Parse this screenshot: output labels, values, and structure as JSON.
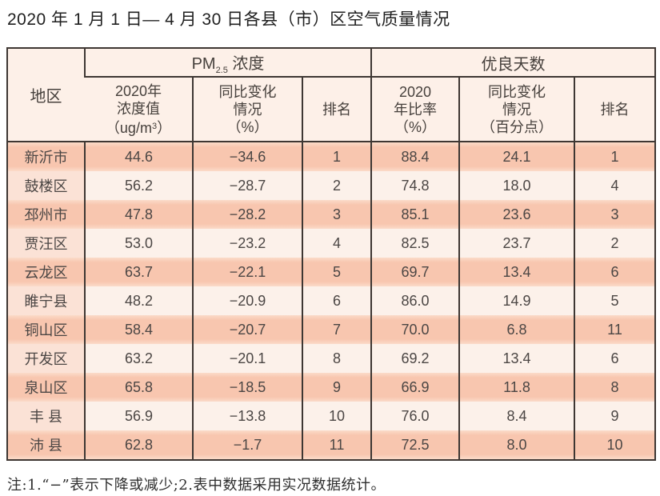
{
  "title": "2020 年 1 月 1 日— 4 月 30 日各县（市）区空气质量情况",
  "note": "注:1.“−”表示下降或减少;2.表中数据采用实况数据统计。",
  "colors": {
    "row_salmon": "#f8c6af",
    "row_light": "#fcf1ea",
    "region_light": "#fbe2d6",
    "header_bg": "#fdf0e8",
    "border": "#3e3733"
  },
  "chart_data": {
    "type": "table",
    "title": "2020年1月1日—4月30日各县（市）区空气质量情况",
    "header": {
      "region": "地区",
      "group_pm": {
        "prefix": "PM",
        "sub": "2.5",
        "suffix": " 浓度"
      },
      "group_days": "优良天数",
      "pm_value": {
        "l1": "2020年",
        "l2": "浓度值",
        "l3_pre": "（ug/m",
        "l3_sup": "3",
        "l3_post": "）"
      },
      "pm_change": {
        "l1": "同比变化",
        "l2": "情况",
        "l3": "（%）"
      },
      "pm_rank": "排名",
      "days_ratio": {
        "l1": "2020",
        "l2": "年比率",
        "l3": "（%）"
      },
      "days_change": {
        "l1": "同比变化",
        "l2": "情况",
        "l3": "（百分点）"
      },
      "days_rank": "排名"
    },
    "rows": [
      {
        "region": "新沂市",
        "pm_value": "44.6",
        "pm_change": "−34.6",
        "pm_rank": "1",
        "ratio": "88.4",
        "ratio_change": "24.1",
        "ratio_rank": "1"
      },
      {
        "region": "鼓楼区",
        "pm_value": "56.2",
        "pm_change": "−28.7",
        "pm_rank": "2",
        "ratio": "74.8",
        "ratio_change": "18.0",
        "ratio_rank": "4"
      },
      {
        "region": "邳州市",
        "pm_value": "47.8",
        "pm_change": "−28.2",
        "pm_rank": "3",
        "ratio": "85.1",
        "ratio_change": "23.6",
        "ratio_rank": "3"
      },
      {
        "region": "贾汪区",
        "pm_value": "53.0",
        "pm_change": "−23.2",
        "pm_rank": "4",
        "ratio": "82.5",
        "ratio_change": "23.7",
        "ratio_rank": "2"
      },
      {
        "region": "云龙区",
        "pm_value": "63.7",
        "pm_change": "−22.1",
        "pm_rank": "5",
        "ratio": "69.7",
        "ratio_change": "13.4",
        "ratio_rank": "6"
      },
      {
        "region": "睢宁县",
        "pm_value": "48.2",
        "pm_change": "−20.9",
        "pm_rank": "6",
        "ratio": "86.0",
        "ratio_change": "14.9",
        "ratio_rank": "5"
      },
      {
        "region": "铜山区",
        "pm_value": "58.4",
        "pm_change": "−20.7",
        "pm_rank": "7",
        "ratio": "70.0",
        "ratio_change": "6.8",
        "ratio_rank": "11"
      },
      {
        "region": "开发区",
        "pm_value": "63.2",
        "pm_change": "−20.1",
        "pm_rank": "8",
        "ratio": "69.2",
        "ratio_change": "13.4",
        "ratio_rank": "6"
      },
      {
        "region": "泉山区",
        "pm_value": "65.8",
        "pm_change": "−18.5",
        "pm_rank": "9",
        "ratio": "66.9",
        "ratio_change": "11.8",
        "ratio_rank": "8"
      },
      {
        "region": "丰 县",
        "pm_value": "56.9",
        "pm_change": "−13.8",
        "pm_rank": "10",
        "ratio": "76.0",
        "ratio_change": "8.4",
        "ratio_rank": "9"
      },
      {
        "region": "沛 县",
        "pm_value": "62.8",
        "pm_change": "−1.7",
        "pm_rank": "11",
        "ratio": "72.5",
        "ratio_change": "8.0",
        "ratio_rank": "10"
      }
    ]
  }
}
